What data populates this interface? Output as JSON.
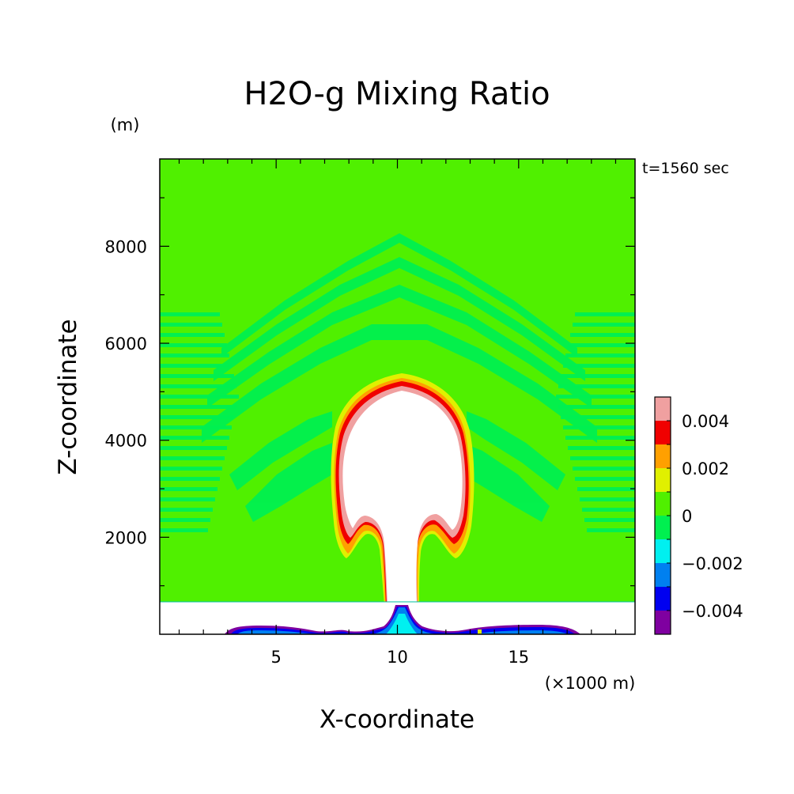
{
  "chart_data": {
    "type": "heatmap",
    "title": "H2O-g Mixing Ratio",
    "xlabel": "X-coordinate",
    "ylabel": "Z-coordinate",
    "x_unit": "(×1000 m)",
    "y_unit": "(m)",
    "time_label": "t=1560 sec",
    "xlim": [
      0.2,
      19.8
    ],
    "ylim": [
      0,
      9800
    ],
    "x_ticks": [
      5,
      10,
      15
    ],
    "y_ticks": [
      2000,
      4000,
      6000,
      8000
    ],
    "grid": false,
    "legend_placement": "right",
    "colorbar": {
      "range": [
        -0.005,
        0.005
      ],
      "levels": [
        {
          "from": -0.005,
          "to": -0.004,
          "color": "#7f00a0"
        },
        {
          "from": -0.004,
          "to": -0.003,
          "color": "#0000f0"
        },
        {
          "from": -0.003,
          "to": -0.002,
          "color": "#0080f0"
        },
        {
          "from": -0.002,
          "to": -0.001,
          "color": "#00f0f0"
        },
        {
          "from": -0.001,
          "to": 0.0,
          "color": "#00f050"
        },
        {
          "from": 0.0,
          "to": 0.001,
          "color": "#50f000"
        },
        {
          "from": 0.001,
          "to": 0.002,
          "color": "#e0f000"
        },
        {
          "from": 0.002,
          "to": 0.003,
          "color": "#ffa000"
        },
        {
          "from": 0.003,
          "to": 0.004,
          "color": "#f00000"
        },
        {
          "from": 0.004,
          "to": 0.005,
          "color": "#f0a0a0"
        }
      ],
      "tick_values": [
        0.004,
        0.002,
        0,
        -0.002,
        -0.004
      ],
      "tick_labels": [
        "0.004",
        "0.002",
        "0",
        "−0.002",
        "−0.004"
      ]
    },
    "background_color": "#50f000",
    "features": {
      "plume_top_z": 5400,
      "plume_center_x": 10.2,
      "plume_max_width_x": [
        7.3,
        13.2
      ],
      "stem_x": [
        9.6,
        10.8
      ],
      "band_z": [
        0,
        700
      ],
      "band_color": "#ffffff",
      "surface_layer_x": [
        3.0,
        17.6
      ]
    }
  }
}
